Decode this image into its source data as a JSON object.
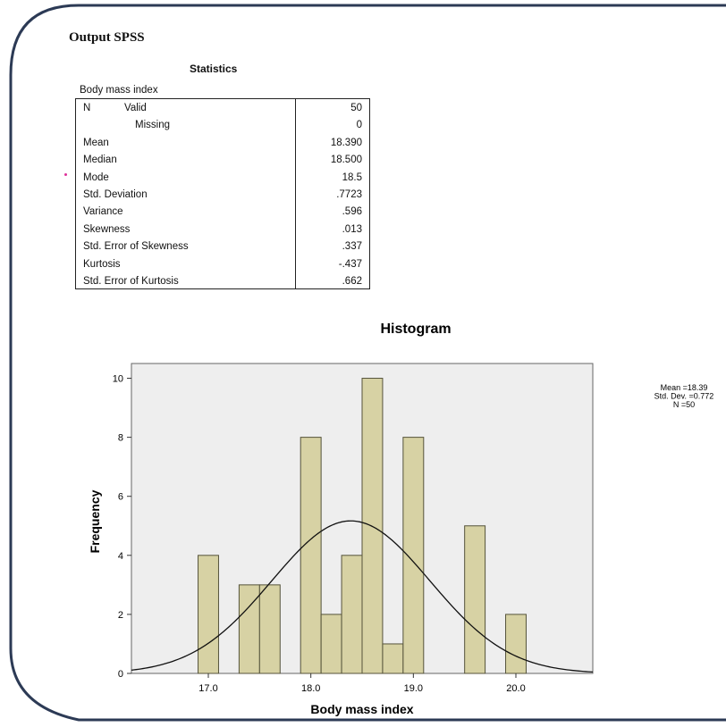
{
  "document": {
    "output_title": "Output SPSS",
    "stats_title": "Statistics",
    "stats_variable": "Body mass index",
    "stats_rows": [
      {
        "label": "N",
        "sublabel": "Valid",
        "value": "50"
      },
      {
        "label": "",
        "sublabel": "Missing",
        "value": "0"
      },
      {
        "label": "Mean",
        "sublabel": "",
        "value": "18.390"
      },
      {
        "label": "Median",
        "sublabel": "",
        "value": "18.500"
      },
      {
        "label": "Mode",
        "sublabel": "",
        "value": "18.5"
      },
      {
        "label": "Std. Deviation",
        "sublabel": "",
        "value": ".7723"
      },
      {
        "label": "Variance",
        "sublabel": "",
        "value": ".596"
      },
      {
        "label": "Skewness",
        "sublabel": "",
        "value": ".013"
      },
      {
        "label": "Std. Error of Skewness",
        "sublabel": "",
        "value": ".337"
      },
      {
        "label": "Kurtosis",
        "sublabel": "",
        "value": "-.437"
      },
      {
        "label": "Std. Error of Kurtosis",
        "sublabel": "",
        "value": ".662"
      }
    ]
  },
  "colors": {
    "bar_fill": "#d7d2a4",
    "bar_stroke": "#55533a",
    "plot_bg": "#eeeeee",
    "frame_stroke": "#2c3a55",
    "curve": "#111111"
  },
  "chart_data": {
    "type": "bar",
    "title": "Histogram",
    "xlabel": "Body mass index",
    "ylabel": "Frequency",
    "xlim": [
      16.25,
      20.75
    ],
    "ylim": [
      0,
      10.5
    ],
    "x_ticks": [
      17.0,
      18.0,
      19.0,
      20.0
    ],
    "x_tick_labels": [
      "17.0",
      "18.0",
      "19.0",
      "20.0"
    ],
    "y_ticks": [
      0,
      2,
      4,
      6,
      8,
      10
    ],
    "y_tick_labels": [
      "0",
      "2",
      "4",
      "6",
      "8",
      "10"
    ],
    "bin_width": 0.2,
    "bins": [
      {
        "x": 17.0,
        "count": 4
      },
      {
        "x": 17.4,
        "count": 3
      },
      {
        "x": 17.6,
        "count": 3
      },
      {
        "x": 18.0,
        "count": 8
      },
      {
        "x": 18.2,
        "count": 2
      },
      {
        "x": 18.4,
        "count": 4
      },
      {
        "x": 18.6,
        "count": 10
      },
      {
        "x": 18.8,
        "count": 1
      },
      {
        "x": 19.0,
        "count": 8
      },
      {
        "x": 19.6,
        "count": 5
      },
      {
        "x": 20.0,
        "count": 2
      }
    ],
    "normal_curve": {
      "mean": 18.39,
      "sd": 0.772,
      "n": 50
    },
    "stats_legend": [
      "Mean =18.39",
      "Std. Dev. =0.772",
      "N =50"
    ],
    "grid": false,
    "legend": "right"
  }
}
